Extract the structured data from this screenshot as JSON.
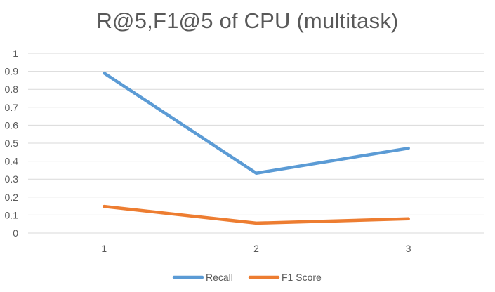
{
  "chart_data": {
    "type": "line",
    "title": "R@5,F1@5 of CPU (multitask)",
    "xlabel": "",
    "ylabel": "",
    "categories": [
      "1",
      "2",
      "3"
    ],
    "ylim": [
      0,
      1
    ],
    "yticks": [
      "0",
      "0.1",
      "0.2",
      "0.3",
      "0.4",
      "0.5",
      "0.6",
      "0.7",
      "0.8",
      "0.9",
      "1"
    ],
    "grid": true,
    "legend_position": "bottom",
    "series": [
      {
        "name": "Recall",
        "color": "#5B9BD5",
        "values": [
          0.89,
          0.333,
          0.472
        ]
      },
      {
        "name": "F1 Score",
        "color": "#ED7D31",
        "values": [
          0.148,
          0.055,
          0.079
        ]
      }
    ]
  }
}
